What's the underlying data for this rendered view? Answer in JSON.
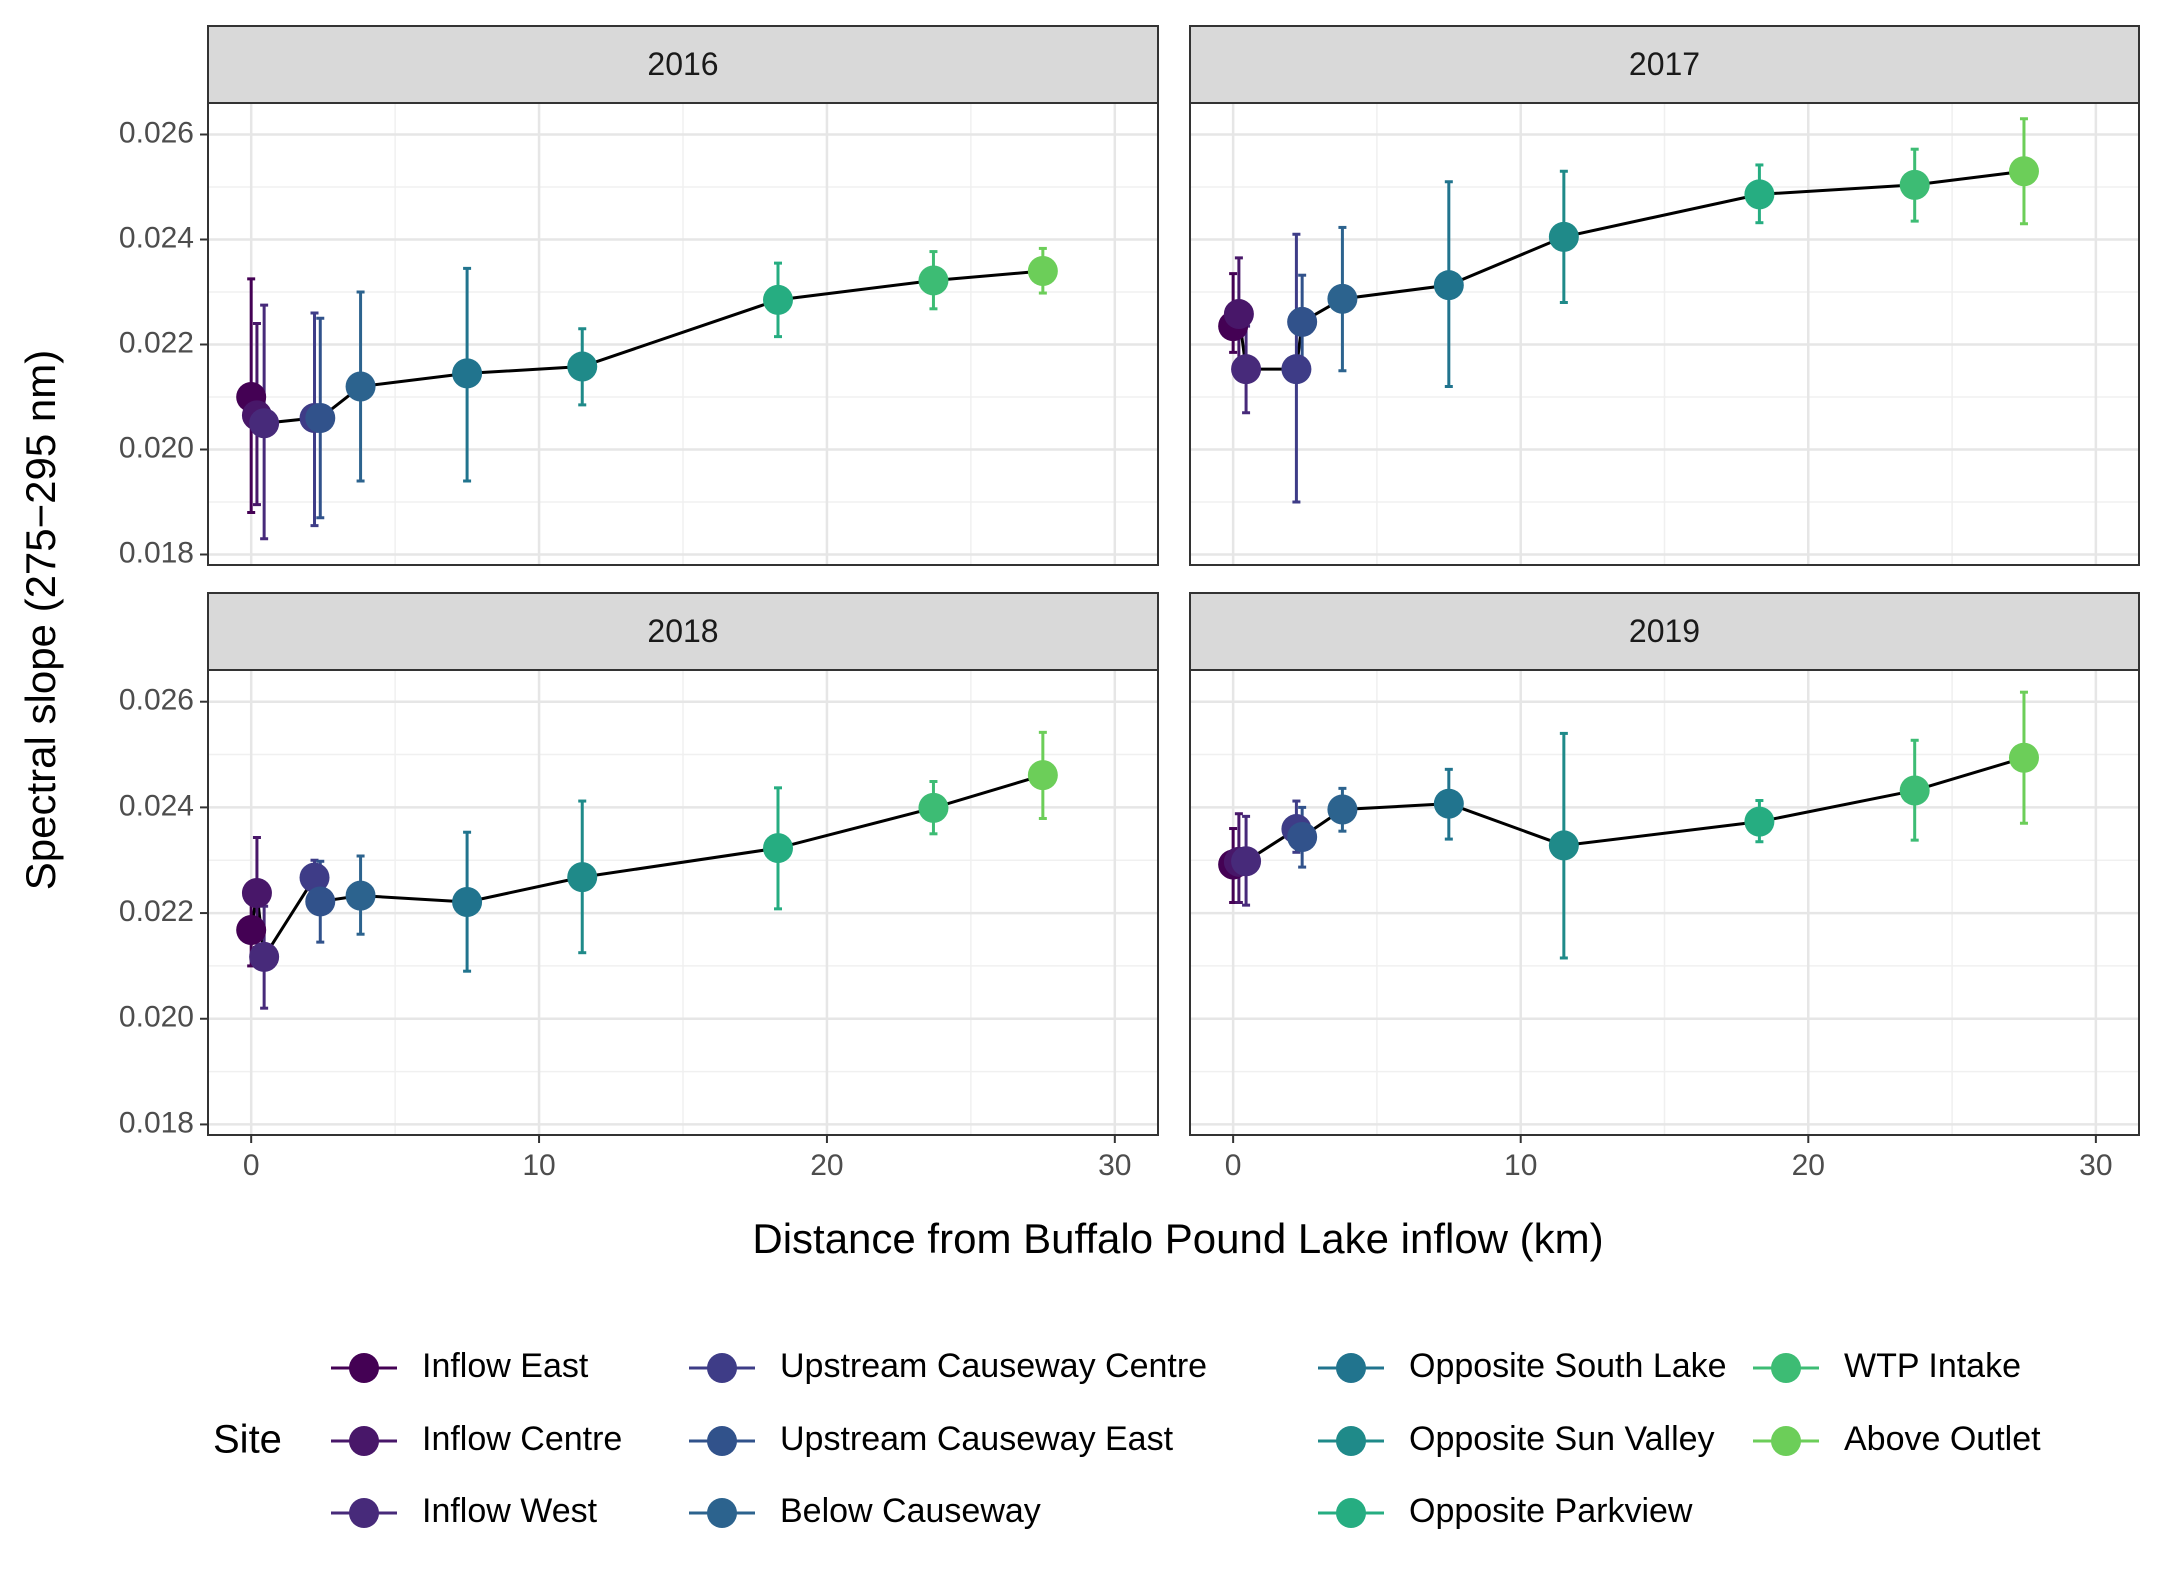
{
  "chart_data": {
    "type": "scatter",
    "xlabel": "Distance from Buffalo Pound Lake inflow (km)",
    "ylabel": "Spectral slope (275−295 nm)",
    "xlim": [
      -1.5,
      31.5
    ],
    "ylim": [
      0.0178,
      0.0266
    ],
    "x_ticks": [
      0,
      10,
      20,
      30
    ],
    "x_tick_labels": [
      "0",
      "10",
      "20",
      "30"
    ],
    "y_ticks": [
      0.018,
      0.02,
      0.022,
      0.024,
      0.026
    ],
    "y_tick_labels": [
      "0.018",
      "0.020",
      "0.022",
      "0.024",
      "0.026"
    ],
    "grid": true,
    "legend_title": "Site",
    "legend_position": "bottom",
    "sites": [
      {
        "name": "Inflow East",
        "color": "#440154"
      },
      {
        "name": "Inflow Centre",
        "color": "#481769"
      },
      {
        "name": "Inflow West",
        "color": "#472A7A"
      },
      {
        "name": "Upstream Causeway Centre",
        "color": "#3E3C87"
      },
      {
        "name": "Upstream Causeway East",
        "color": "#31528B"
      },
      {
        "name": "Below Causeway",
        "color": "#2C638E"
      },
      {
        "name": "Opposite South Lake",
        "color": "#21748E"
      },
      {
        "name": "Opposite Sun Valley",
        "color": "#1F8A89"
      },
      {
        "name": "Opposite Parkview",
        "color": "#26AD81"
      },
      {
        "name": "WTP Intake",
        "color": "#3DBC74"
      },
      {
        "name": "Above Outlet",
        "color": "#6CCE59"
      }
    ],
    "panels": [
      {
        "title": "2016",
        "points": [
          {
            "site": "Inflow East",
            "x": 0.0,
            "y": 0.021,
            "lo": 0.0188,
            "hi": 0.02325
          },
          {
            "site": "Inflow Centre",
            "x": 0.2,
            "y": 0.02065,
            "lo": 0.01895,
            "hi": 0.0224
          },
          {
            "site": "Inflow West",
            "x": 0.45,
            "y": 0.0205,
            "lo": 0.0183,
            "hi": 0.02275
          },
          {
            "site": "Upstream Causeway Centre",
            "x": 2.2,
            "y": 0.0206,
            "lo": 0.01855,
            "hi": 0.0226
          },
          {
            "site": "Upstream Causeway East",
            "x": 2.4,
            "y": 0.0206,
            "lo": 0.0187,
            "hi": 0.0225
          },
          {
            "site": "Below Causeway",
            "x": 3.8,
            "y": 0.0212,
            "lo": 0.0194,
            "hi": 0.023
          },
          {
            "site": "Opposite South Lake",
            "x": 7.5,
            "y": 0.02145,
            "lo": 0.0194,
            "hi": 0.02345
          },
          {
            "site": "Opposite Sun Valley",
            "x": 11.5,
            "y": 0.02158,
            "lo": 0.02085,
            "hi": 0.0223
          },
          {
            "site": "Opposite Parkview",
            "x": 18.3,
            "y": 0.02285,
            "lo": 0.02215,
            "hi": 0.02355
          },
          {
            "site": "WTP Intake",
            "x": 23.7,
            "y": 0.02322,
            "lo": 0.02268,
            "hi": 0.02377
          },
          {
            "site": "Above Outlet",
            "x": 27.5,
            "y": 0.0234,
            "lo": 0.02298,
            "hi": 0.02383
          }
        ]
      },
      {
        "title": "2017",
        "points": [
          {
            "site": "Inflow East",
            "x": 0.0,
            "y": 0.02235,
            "lo": 0.02185,
            "hi": 0.02335
          },
          {
            "site": "Inflow Centre",
            "x": 0.2,
            "y": 0.02258,
            "lo": 0.02155,
            "hi": 0.02365
          },
          {
            "site": "Inflow West",
            "x": 0.45,
            "y": 0.02153,
            "lo": 0.0207,
            "hi": 0.02235
          },
          {
            "site": "Upstream Causeway Centre",
            "x": 2.2,
            "y": 0.02153,
            "lo": 0.019,
            "hi": 0.0241
          },
          {
            "site": "Upstream Causeway East",
            "x": 2.4,
            "y": 0.02243,
            "lo": 0.02155,
            "hi": 0.02332
          },
          {
            "site": "Below Causeway",
            "x": 3.8,
            "y": 0.02287,
            "lo": 0.0215,
            "hi": 0.02423
          },
          {
            "site": "Opposite South Lake",
            "x": 7.5,
            "y": 0.02313,
            "lo": 0.0212,
            "hi": 0.0251
          },
          {
            "site": "Opposite Sun Valley",
            "x": 11.5,
            "y": 0.02405,
            "lo": 0.0228,
            "hi": 0.0253
          },
          {
            "site": "Opposite Parkview",
            "x": 18.3,
            "y": 0.02486,
            "lo": 0.02432,
            "hi": 0.02542
          },
          {
            "site": "WTP Intake",
            "x": 23.7,
            "y": 0.02504,
            "lo": 0.02435,
            "hi": 0.02572
          },
          {
            "site": "Above Outlet",
            "x": 27.5,
            "y": 0.0253,
            "lo": 0.0243,
            "hi": 0.0263
          }
        ]
      },
      {
        "title": "2018",
        "points": [
          {
            "site": "Inflow East",
            "x": 0.0,
            "y": 0.02168,
            "lo": 0.021,
            "hi": 0.02235
          },
          {
            "site": "Inflow Centre",
            "x": 0.2,
            "y": 0.02238,
            "lo": 0.02135,
            "hi": 0.02343
          },
          {
            "site": "Inflow West",
            "x": 0.45,
            "y": 0.02117,
            "lo": 0.0202,
            "hi": 0.02213
          },
          {
            "site": "Upstream Causeway Centre",
            "x": 2.2,
            "y": 0.02267,
            "lo": 0.02235,
            "hi": 0.023
          },
          {
            "site": "Upstream Causeway East",
            "x": 2.4,
            "y": 0.02222,
            "lo": 0.02145,
            "hi": 0.02298
          },
          {
            "site": "Below Causeway",
            "x": 3.8,
            "y": 0.02233,
            "lo": 0.0216,
            "hi": 0.02308
          },
          {
            "site": "Opposite South Lake",
            "x": 7.5,
            "y": 0.02221,
            "lo": 0.0209,
            "hi": 0.02353
          },
          {
            "site": "Opposite Sun Valley",
            "x": 11.5,
            "y": 0.02268,
            "lo": 0.02125,
            "hi": 0.02412
          },
          {
            "site": "Opposite Parkview",
            "x": 18.3,
            "y": 0.02323,
            "lo": 0.02208,
            "hi": 0.02437
          },
          {
            "site": "WTP Intake",
            "x": 23.7,
            "y": 0.02399,
            "lo": 0.0235,
            "hi": 0.02449
          },
          {
            "site": "Above Outlet",
            "x": 27.5,
            "y": 0.02461,
            "lo": 0.02379,
            "hi": 0.02542
          }
        ]
      },
      {
        "title": "2019",
        "points": [
          {
            "site": "Inflow East",
            "x": 0.0,
            "y": 0.02292,
            "lo": 0.0222,
            "hi": 0.0236
          },
          {
            "site": "Inflow Centre",
            "x": 0.2,
            "y": 0.02297,
            "lo": 0.0222,
            "hi": 0.02388
          },
          {
            "site": "Inflow West",
            "x": 0.45,
            "y": 0.02298,
            "lo": 0.02215,
            "hi": 0.02383
          },
          {
            "site": "Upstream Causeway Centre",
            "x": 2.2,
            "y": 0.02359,
            "lo": 0.02315,
            "hi": 0.02412
          },
          {
            "site": "Upstream Causeway East",
            "x": 2.4,
            "y": 0.02344,
            "lo": 0.02287,
            "hi": 0.024
          },
          {
            "site": "Below Causeway",
            "x": 3.8,
            "y": 0.02396,
            "lo": 0.02355,
            "hi": 0.02436
          },
          {
            "site": "Opposite South Lake",
            "x": 7.5,
            "y": 0.02407,
            "lo": 0.0234,
            "hi": 0.02472
          },
          {
            "site": "Opposite Sun Valley",
            "x": 11.5,
            "y": 0.02328,
            "lo": 0.02115,
            "hi": 0.0254
          },
          {
            "site": "Opposite Parkview",
            "x": 18.3,
            "y": 0.02373,
            "lo": 0.02335,
            "hi": 0.02413
          },
          {
            "site": "WTP Intake",
            "x": 23.7,
            "y": 0.02432,
            "lo": 0.02338,
            "hi": 0.02527
          },
          {
            "site": "Above Outlet",
            "x": 27.5,
            "y": 0.02494,
            "lo": 0.0237,
            "hi": 0.02618
          }
        ]
      }
    ]
  }
}
